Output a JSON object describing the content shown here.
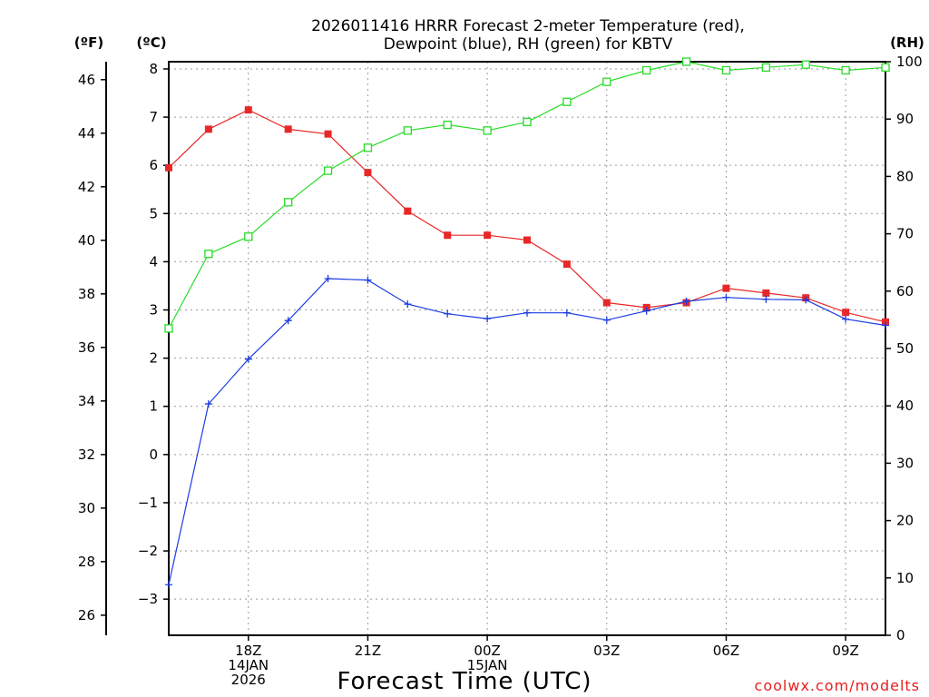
{
  "chart_data": {
    "type": "line",
    "title_lines": [
      "2026011416 HRRR Forecast 2-meter Temperature (red),",
      "Dewpoint (blue), RH (green) for KBTV"
    ],
    "xlabel": "Forecast Time (UTC)",
    "credit": "coolwx.com/modelts",
    "units": {
      "fahrenheit": "(ºF)",
      "celsius": "(ºC)",
      "rh": "(RH)"
    },
    "x_hours": [
      16,
      17,
      18,
      19,
      20,
      21,
      22,
      23,
      24,
      25,
      26,
      27,
      28,
      29,
      30,
      31,
      32,
      33,
      34
    ],
    "xlim": [
      16,
      34
    ],
    "x_ticks": [
      {
        "hour": 18,
        "lines": [
          "18Z",
          "14JAN",
          "2026"
        ]
      },
      {
        "hour": 21,
        "lines": [
          "21Z"
        ]
      },
      {
        "hour": 24,
        "lines": [
          "00Z",
          "15JAN"
        ]
      },
      {
        "hour": 27,
        "lines": [
          "03Z"
        ]
      },
      {
        "hour": 30,
        "lines": [
          "06Z"
        ]
      },
      {
        "hour": 33,
        "lines": [
          "09Z"
        ]
      }
    ],
    "celsius_axis": {
      "range": [
        -3.75,
        8.15
      ],
      "ticks": [
        "8",
        "7",
        "6",
        "5",
        "4",
        "3",
        "2",
        "1",
        "0",
        "−1",
        "−2",
        "−3"
      ],
      "tick_values": [
        8,
        7,
        6,
        5,
        4,
        3,
        2,
        1,
        0,
        -1,
        -2,
        -3
      ]
    },
    "fahrenheit_axis": {
      "ticks": [
        "46",
        "44",
        "42",
        "40",
        "38",
        "36",
        "34",
        "32",
        "30",
        "28",
        "26"
      ],
      "tick_values": [
        46,
        44,
        42,
        40,
        38,
        36,
        34,
        32,
        30,
        28,
        26
      ]
    },
    "rh_axis": {
      "range": [
        0,
        100
      ],
      "ticks": [
        "100",
        "90",
        "80",
        "70",
        "60",
        "50",
        "40",
        "30",
        "20",
        "10",
        "0"
      ],
      "tick_values": [
        100,
        90,
        80,
        70,
        60,
        50,
        40,
        30,
        20,
        10,
        0
      ]
    },
    "series": [
      {
        "name": "Temperature",
        "color": "#e82828",
        "marker": "filled-square",
        "axis": "celsius",
        "values": [
          5.95,
          6.75,
          7.15,
          6.75,
          6.65,
          5.85,
          5.05,
          4.55,
          4.55,
          4.45,
          3.95,
          3.15,
          3.05,
          3.15,
          3.45,
          3.35,
          3.25,
          2.95,
          2.75
        ]
      },
      {
        "name": "Dewpoint",
        "color": "#1c3ce0",
        "marker": "plus",
        "axis": "celsius",
        "values": [
          -2.7,
          1.05,
          1.98,
          2.78,
          3.65,
          3.62,
          3.12,
          2.92,
          2.82,
          2.94,
          2.94,
          2.79,
          2.98,
          3.18,
          3.26,
          3.22,
          3.21,
          2.81,
          2.68
        ]
      },
      {
        "name": "RH",
        "color": "#28dc28",
        "marker": "open-square",
        "axis": "rh",
        "values": [
          53.5,
          66.5,
          69.5,
          75.5,
          81,
          85,
          88,
          89,
          88,
          89.5,
          93,
          96.5,
          98.5,
          100,
          98.5,
          99,
          99.5,
          98.5,
          99
        ]
      }
    ]
  }
}
